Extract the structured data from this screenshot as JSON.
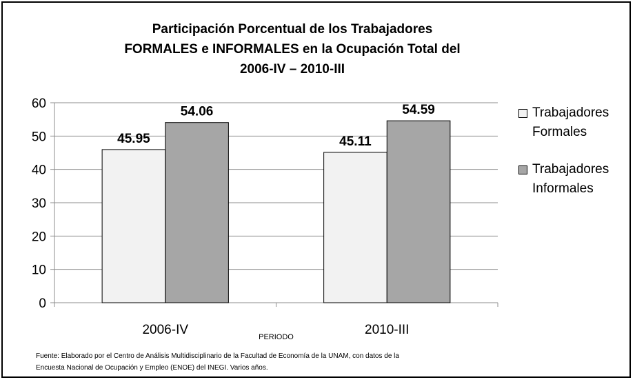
{
  "chart_data": {
    "type": "bar",
    "title_lines": [
      "Participación Porcentual de los Trabajadores",
      "FORMALES e INFORMALES en la Ocupación Total del",
      "2006-IV – 2010-III"
    ],
    "xlabel": "PERIODO",
    "ylabel": "",
    "categories": [
      "2006-IV",
      "2010-III"
    ],
    "ylim": [
      0,
      60
    ],
    "yticks": [
      0,
      10,
      20,
      30,
      40,
      50,
      60
    ],
    "grid": true,
    "legend_position": "right",
    "series": [
      {
        "name": "Trabajadores Formales",
        "values": [
          45.95,
          45.11
        ],
        "color": "#f2f2f2",
        "labels": [
          "45.95",
          "45.11"
        ]
      },
      {
        "name": "Trabajadores Informales",
        "values": [
          54.06,
          54.59
        ],
        "color": "#a6a6a6",
        "labels": [
          "54.06",
          "54.59"
        ]
      }
    ]
  },
  "legend": {
    "formales": {
      "line1": "Trabajadores",
      "line2": "Formales"
    },
    "informales": {
      "line1": "Trabajadores",
      "line2": "Informales"
    }
  },
  "source": {
    "line1": "Fuente: Elaborado por el Centro de Análisis Multidisciplinario de la Facultad de Economía de la UNAM, con datos de la",
    "line2": "Encuesta Nacional de Ocupación y Empleo (ENOE) del INEGI. Varios años."
  }
}
